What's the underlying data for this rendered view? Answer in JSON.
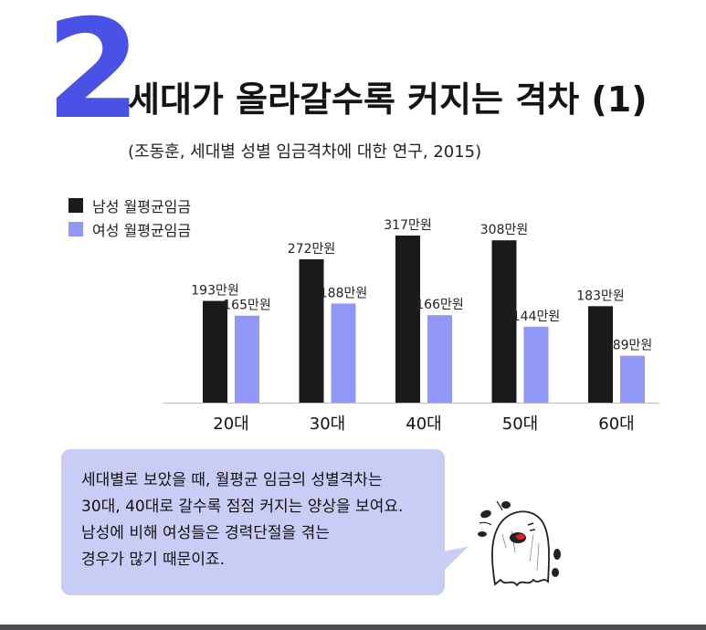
{
  "section_number": "2",
  "title": "세대가 올라갈수록 커지는 격차 (1)",
  "source": "(조동훈, 세대별 성별 임금격차에 대한 연구, 2015)",
  "colors": {
    "accent": "#4a52e6",
    "male": "#1b1b1b",
    "female": "#9097f5",
    "bubble": "#c9cdf6"
  },
  "chart_data": {
    "type": "bar",
    "categories": [
      "20대",
      "30대",
      "40대",
      "50대",
      "60대"
    ],
    "series": [
      {
        "name": "남성 월평균임금",
        "values": [
          193,
          272,
          317,
          308,
          183
        ],
        "color": "#1b1b1b"
      },
      {
        "name": "여성 월평균임금",
        "values": [
          165,
          188,
          166,
          144,
          89
        ],
        "color": "#9097f5"
      }
    ],
    "data_labels": [
      [
        "193만원",
        "272만원",
        "317만원",
        "308만원",
        "183만원"
      ],
      [
        "165만원",
        "188만원",
        "166만원",
        "144만원",
        "89만원"
      ]
    ],
    "ylim": [
      0,
      317
    ],
    "grid": false,
    "legend_position": "top-left"
  },
  "bubble": {
    "lines": [
      "세대별로 보았을 때, 월평균 임금의 성별격차는",
      "30대, 40대로 갈수록 점점 커지는 양상을 보여요.",
      "남성에 비해 여성들은 경력단절을 겪는",
      "경우가 많기 때문이죠."
    ]
  },
  "mascot_icon": "ghost-mascot-icon"
}
